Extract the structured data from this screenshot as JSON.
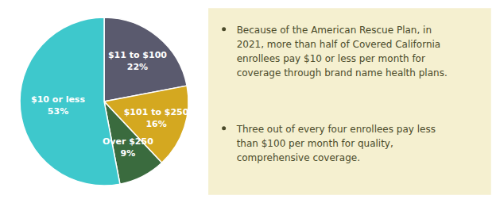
{
  "chart_data": {
    "type": "pie",
    "categories": [
      "$11 to $100",
      "$101 to $250",
      "Over $250",
      "$10 or less"
    ],
    "values": [
      22,
      16,
      9,
      53
    ],
    "value_labels": [
      "22%",
      "16%",
      "9%",
      "53%"
    ],
    "colors": [
      "#5a5a6e",
      "#d4a820",
      "#3a6b3e",
      "#3ec8cc"
    ],
    "data_labels": true,
    "annotations": [
      "Because of the American Rescue Plan, in\n2021, more than half of Covered California\nenrollees pay $10 or less per month for\ncoverage through brand name health plans.",
      "Three out of every four enrollees pay less\nthan $100 per month for quality,\ncomprehensive coverage."
    ]
  }
}
